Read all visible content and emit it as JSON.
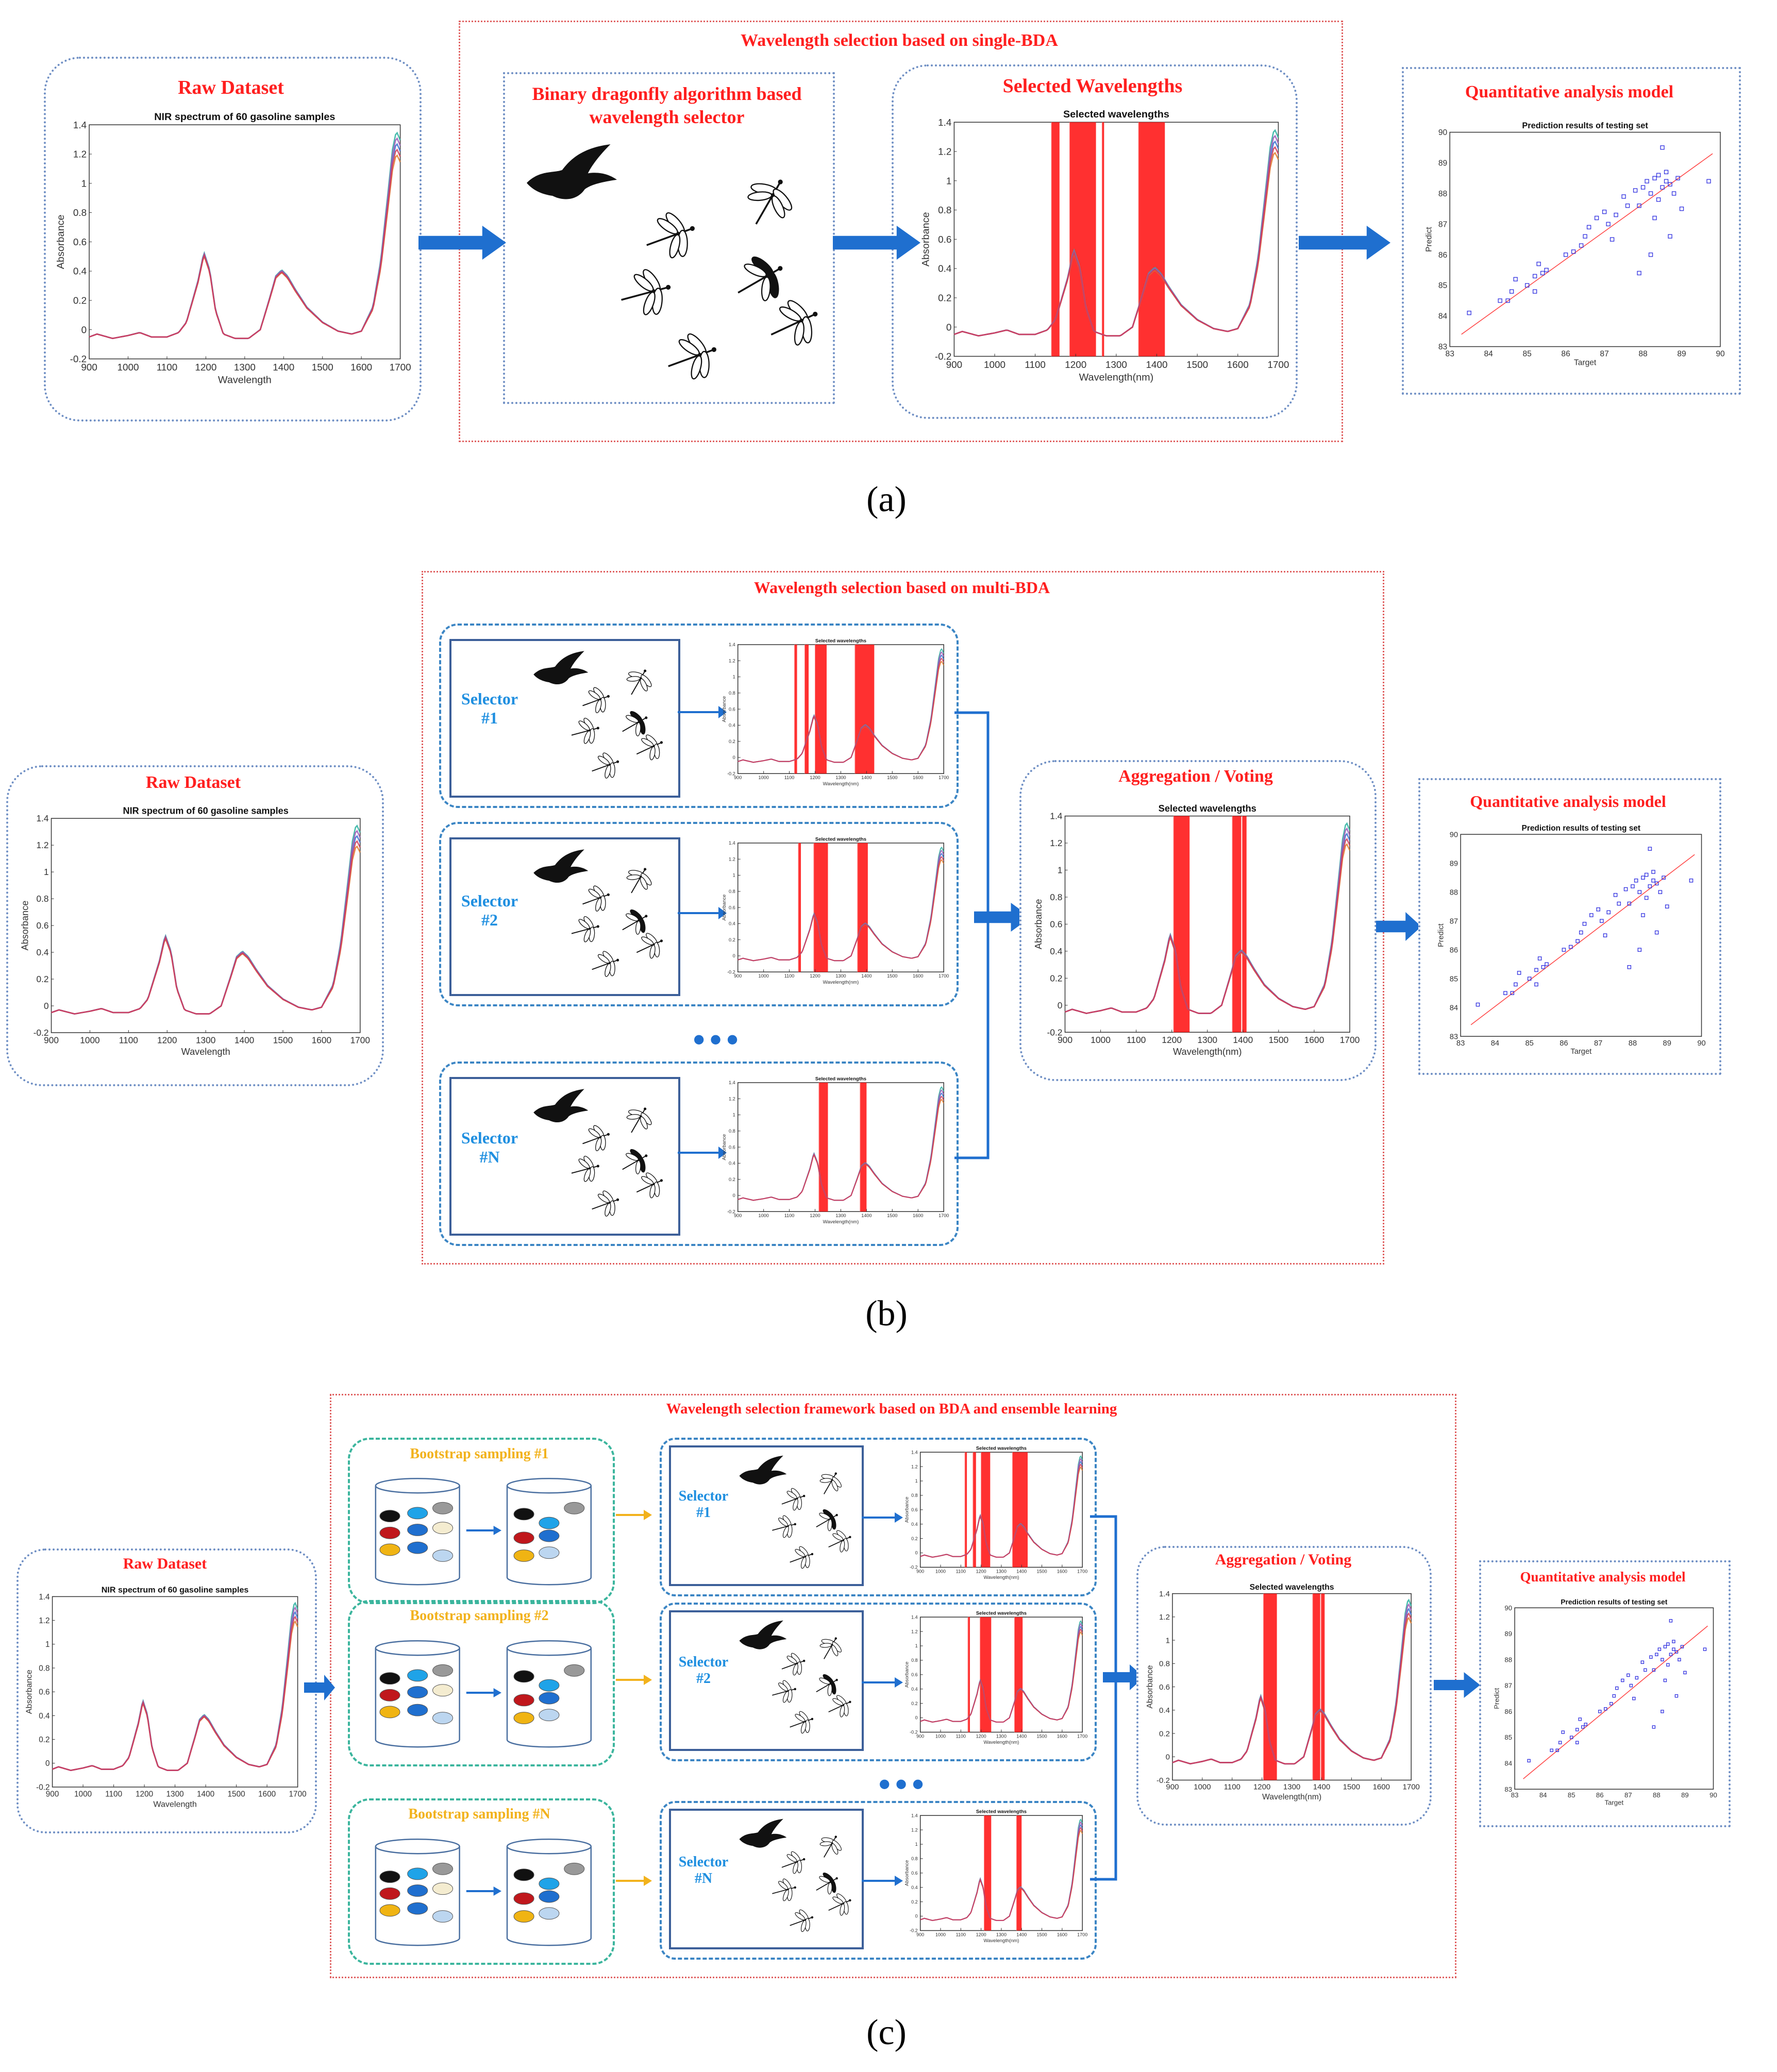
{
  "panel_a": {
    "frame_title": "Wavelength selection based on single-BDA",
    "raw_title": "Raw Dataset",
    "selector_title": "Binary dragonfly algorithm based wavelength selector",
    "selected_title": "Selected Wavelengths",
    "model_title": "Quantitative analysis model",
    "caption": "(a)"
  },
  "panel_b": {
    "frame_title": "Wavelength selection based on multi-BDA",
    "raw_title": "Raw Dataset",
    "selectors": [
      "Selector #1",
      "Selector #2",
      "Selector #N"
    ],
    "ellipsis": "•••",
    "aggregation_title": "Aggregation / Voting",
    "model_title": "Quantitative analysis model",
    "caption": "(b)"
  },
  "panel_c": {
    "frame_title": "Wavelength selection framework based on BDA and ensemble learning",
    "raw_title": "Raw Dataset",
    "bootstrap": [
      "Bootstrap   sampling #1",
      "Bootstrap   sampling #2",
      "Bootstrap   sampling #N"
    ],
    "selectors": [
      "Selector #1",
      "Selector #2",
      "Selector #N"
    ],
    "ellipsis": "•••",
    "aggregation_title": "Aggregation / Voting",
    "model_title": "Quantitative analysis model",
    "caption": "(c)"
  },
  "colors": {
    "accent_red": "#ff1f1f",
    "accent_blue": "#1f8fe0",
    "accent_orange": "#f2b21c",
    "arrow_blue": "#1f6fcf"
  },
  "chart_data": [
    {
      "id": "raw_spectrum",
      "type": "line",
      "title": "NIR spectrum of 60 gasoline samples",
      "xlabel": "Wavelength",
      "ylabel": "Absorbance",
      "xlim": [
        900,
        1700
      ],
      "ylim": [
        -0.2,
        1.4
      ],
      "xticks": [
        900,
        1000,
        1100,
        1200,
        1300,
        1400,
        1500,
        1600,
        1700
      ],
      "yticks": [
        -0.2,
        0,
        0.2,
        0.4,
        0.6,
        0.8,
        1.0,
        1.2,
        1.4
      ],
      "ytick_labels": [
        "-0.2",
        "0",
        "0.2",
        "0.4",
        "0.6",
        "0.8",
        "1",
        "1.2",
        "1.4"
      ],
      "series": [
        {
          "name": "mean spectrum",
          "x": [
            900,
            920,
            960,
            1000,
            1030,
            1060,
            1100,
            1130,
            1150,
            1165,
            1180,
            1195,
            1210,
            1225,
            1245,
            1275,
            1310,
            1340,
            1365,
            1380,
            1395,
            1410,
            1430,
            1460,
            1500,
            1540,
            1575,
            1600,
            1630,
            1650,
            1665,
            1680,
            1690,
            1700
          ],
          "y": [
            -0.05,
            -0.03,
            -0.06,
            -0.04,
            -0.02,
            -0.05,
            -0.05,
            -0.02,
            0.05,
            0.19,
            0.33,
            0.52,
            0.4,
            0.13,
            -0.03,
            -0.06,
            -0.06,
            0.0,
            0.22,
            0.36,
            0.4,
            0.36,
            0.27,
            0.15,
            0.05,
            -0.01,
            -0.03,
            -0.01,
            0.15,
            0.45,
            0.8,
            1.16,
            1.28,
            1.22
          ]
        }
      ]
    },
    {
      "id": "selected_single",
      "type": "line",
      "title": "Selected wavelengths",
      "xlabel": "Wavelength(nm)",
      "ylabel": "Absorbance",
      "xlim": [
        900,
        1700
      ],
      "ylim": [
        -0.2,
        1.4
      ],
      "selected_bands": [
        [
          1140,
          1160
        ],
        [
          1185,
          1250
        ],
        [
          1265,
          1270
        ],
        [
          1355,
          1420
        ]
      ]
    },
    {
      "id": "selected_multi_1",
      "type": "line",
      "title": "Selected wavelengths",
      "xlabel": "Wavelength(nm)",
      "ylabel": "Absorbance",
      "xlim": [
        900,
        1700
      ],
      "ylim": [
        -0.2,
        1.4
      ],
      "selected_bands": [
        [
          1120,
          1130
        ],
        [
          1160,
          1175
        ],
        [
          1200,
          1245
        ],
        [
          1355,
          1430
        ]
      ]
    },
    {
      "id": "selected_multi_2",
      "type": "line",
      "title": "Selected wavelengths",
      "xlabel": "Wavelength(nm)",
      "ylabel": "Absorbance",
      "xlim": [
        900,
        1700
      ],
      "ylim": [
        -0.2,
        1.4
      ],
      "selected_bands": [
        [
          1135,
          1145
        ],
        [
          1195,
          1250
        ],
        [
          1365,
          1405
        ]
      ]
    },
    {
      "id": "selected_multi_N",
      "type": "line",
      "title": "Selected wavelengths",
      "xlabel": "Wavelength(nm)",
      "ylabel": "Absorbance",
      "xlim": [
        900,
        1700
      ],
      "ylim": [
        -0.2,
        1.4
      ],
      "selected_bands": [
        [
          1215,
          1250
        ],
        [
          1375,
          1400
        ]
      ]
    },
    {
      "id": "selected_aggregated",
      "type": "line",
      "title": "Selected wavelengths",
      "xlabel": "Wavelength(nm)",
      "ylabel": "Absorbance",
      "xlim": [
        900,
        1700
      ],
      "ylim": [
        -0.2,
        1.4
      ],
      "selected_bands": [
        [
          1205,
          1250
        ],
        [
          1370,
          1395
        ],
        [
          1398,
          1410
        ]
      ]
    },
    {
      "id": "prediction",
      "type": "scatter",
      "title": "Prediction results of testing set",
      "xlabel": "Target",
      "ylabel": "Predict",
      "xlim": [
        83,
        90
      ],
      "ylim": [
        83,
        90
      ],
      "xticks": [
        83,
        84,
        85,
        86,
        87,
        88,
        89,
        90
      ],
      "yticks": [
        83,
        84,
        85,
        86,
        87,
        88,
        89,
        90
      ],
      "fit_line": [
        [
          83.3,
          83.4
        ],
        [
          89.8,
          89.3
        ]
      ],
      "points": [
        [
          83.5,
          84.1
        ],
        [
          84.3,
          84.5
        ],
        [
          84.5,
          84.5
        ],
        [
          84.6,
          84.8
        ],
        [
          84.7,
          85.2
        ],
        [
          85.0,
          85.0
        ],
        [
          85.2,
          85.3
        ],
        [
          85.3,
          85.7
        ],
        [
          85.4,
          85.4
        ],
        [
          85.2,
          84.8
        ],
        [
          85.5,
          85.5
        ],
        [
          86.0,
          86.0
        ],
        [
          86.2,
          86.1
        ],
        [
          86.4,
          86.3
        ],
        [
          86.5,
          86.6
        ],
        [
          86.6,
          86.9
        ],
        [
          86.8,
          87.2
        ],
        [
          87.0,
          87.4
        ],
        [
          87.1,
          87.0
        ],
        [
          87.2,
          86.5
        ],
        [
          87.3,
          87.3
        ],
        [
          87.5,
          87.9
        ],
        [
          87.6,
          87.6
        ],
        [
          87.8,
          88.1
        ],
        [
          87.9,
          87.6
        ],
        [
          88.0,
          88.2
        ],
        [
          88.1,
          88.4
        ],
        [
          88.2,
          88.0
        ],
        [
          88.3,
          88.5
        ],
        [
          88.3,
          87.2
        ],
        [
          88.4,
          88.6
        ],
        [
          88.4,
          87.8
        ],
        [
          88.5,
          88.2
        ],
        [
          88.5,
          89.5
        ],
        [
          88.6,
          88.4
        ],
        [
          88.6,
          88.7
        ],
        [
          88.7,
          88.3
        ],
        [
          88.7,
          86.6
        ],
        [
          88.8,
          88.0
        ],
        [
          88.9,
          88.5
        ],
        [
          89.0,
          87.5
        ],
        [
          89.7,
          88.4
        ],
        [
          88.2,
          86.0
        ],
        [
          87.9,
          85.4
        ]
      ]
    }
  ]
}
